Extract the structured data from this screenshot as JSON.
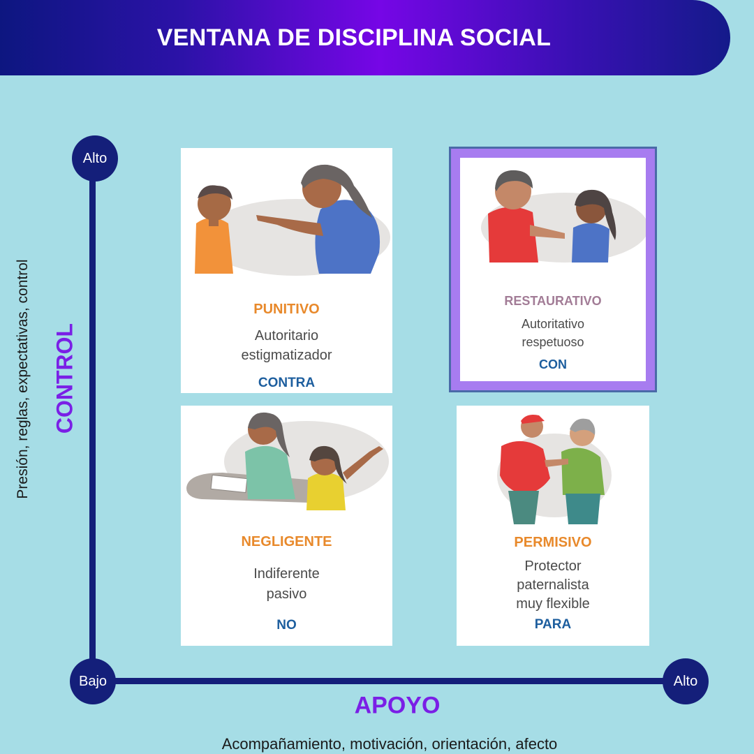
{
  "title": "VENTANA DE DISCIPLINA SOCIAL",
  "y_axis": {
    "label": "CONTROL",
    "description": "Presión, reglas, expectativas, control",
    "high": "Alto",
    "low": "Bajo"
  },
  "x_axis": {
    "label": "APOYO",
    "description": "Acompañamiento, motivación, orientación, afecto",
    "high": "Alto"
  },
  "quadrants": {
    "punitivo": {
      "title": "PUNITIVO",
      "desc_1": "Autoritario",
      "desc_2": "estigmatizador",
      "prep": "CONTRA"
    },
    "restaurativo": {
      "title": "RESTAURATIVO",
      "desc_1": "Autoritativo",
      "desc_2": "respetuoso",
      "prep": "CON"
    },
    "negligente": {
      "title": "NEGLIGENTE",
      "desc_1": "Indiferente",
      "desc_2": "pasivo",
      "prep": "NO"
    },
    "permisivo": {
      "title": "PERMISIVO",
      "desc_1": "Protector",
      "desc_2": "paternalista",
      "desc_3": "muy flexible",
      "prep": "PARA"
    }
  },
  "colors": {
    "background": "#a6dde6",
    "axis": "#141f7a",
    "accent_purple": "#7a1fe6",
    "title_orange": "#e8892b",
    "prep_blue": "#1d5e9e",
    "frame_purple": "#a77cf0"
  }
}
